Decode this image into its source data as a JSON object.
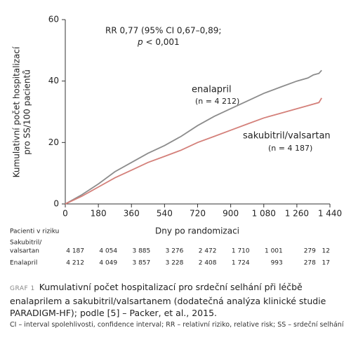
{
  "chart_data": {
    "type": "line",
    "annotation_line1": "RR 0,77 (95% CI 0,67–0,89;",
    "annotation_p": "p",
    "annotation_line2": "< 0,001",
    "ylabel": [
      "Kumulativní počet hospitalizací",
      "pro SS/100 pacientů"
    ],
    "xlabel": "Dny po randomizaci",
    "xlim": [
      0,
      1440
    ],
    "ylim": [
      0,
      60
    ],
    "xticks": [
      0,
      180,
      360,
      540,
      720,
      900,
      {
        "value": 1080,
        "label": "1 080"
      },
      {
        "value": 1260,
        "label": "1 260"
      },
      {
        "value": 1440,
        "label": "1 440"
      }
    ],
    "yticks": [
      0,
      20,
      40,
      60
    ],
    "series": [
      {
        "name": "enalapril",
        "n_label": "(n = 4 212)",
        "color": "#8c8c8c",
        "x": [
          0,
          90,
          180,
          270,
          360,
          450,
          540,
          630,
          720,
          810,
          900,
          990,
          1080,
          1170,
          1260,
          1320,
          1350,
          1380,
          1395
        ],
        "values": [
          0,
          3,
          6.5,
          10.5,
          13.5,
          16.5,
          19,
          22,
          25.5,
          28.5,
          31,
          33.5,
          36,
          38,
          40,
          41,
          42,
          42.5,
          43.5
        ]
      },
      {
        "name": "sakubitril/valsartan",
        "n_label": "(n = 4 187)",
        "color": "#d4807a",
        "x": [
          0,
          90,
          180,
          270,
          360,
          450,
          540,
          630,
          720,
          810,
          900,
          990,
          1080,
          1170,
          1260,
          1320,
          1380,
          1395
        ],
        "values": [
          0,
          2.5,
          5.5,
          8.5,
          11,
          13.5,
          15.5,
          17.5,
          20,
          22,
          24,
          26,
          28,
          29.5,
          31,
          32,
          33,
          34.5
        ]
      }
    ]
  },
  "risk_table": {
    "title": "Pacienti v riziku",
    "rows": [
      {
        "label": [
          "Sakubitril/",
          "valsartan"
        ],
        "values": [
          "4 187",
          "4 054",
          "3 885",
          "3 276",
          "2 472",
          "1 710",
          "1 001",
          "279",
          "12"
        ]
      },
      {
        "label": [
          "Enalapril"
        ],
        "values": [
          "4 212",
          "4 049",
          "3 857",
          "3 228",
          "2 408",
          "1 724",
          "993",
          "278",
          "17"
        ]
      }
    ]
  },
  "caption": {
    "tag": "GRAF 1",
    "text": "Kumulativní počet hospitalizací pro srdeční selhání při léčbě enalaprilem a sakubitril/valsartanem (dodatečná analýza klinické studie PARADIGM-HF); podle [5] – Packer, et al., 2015.",
    "footnote": "CI – interval spolehlivosti, confidence interval; RR – relativní riziko, relative risk; SS – srdeční selhání"
  }
}
